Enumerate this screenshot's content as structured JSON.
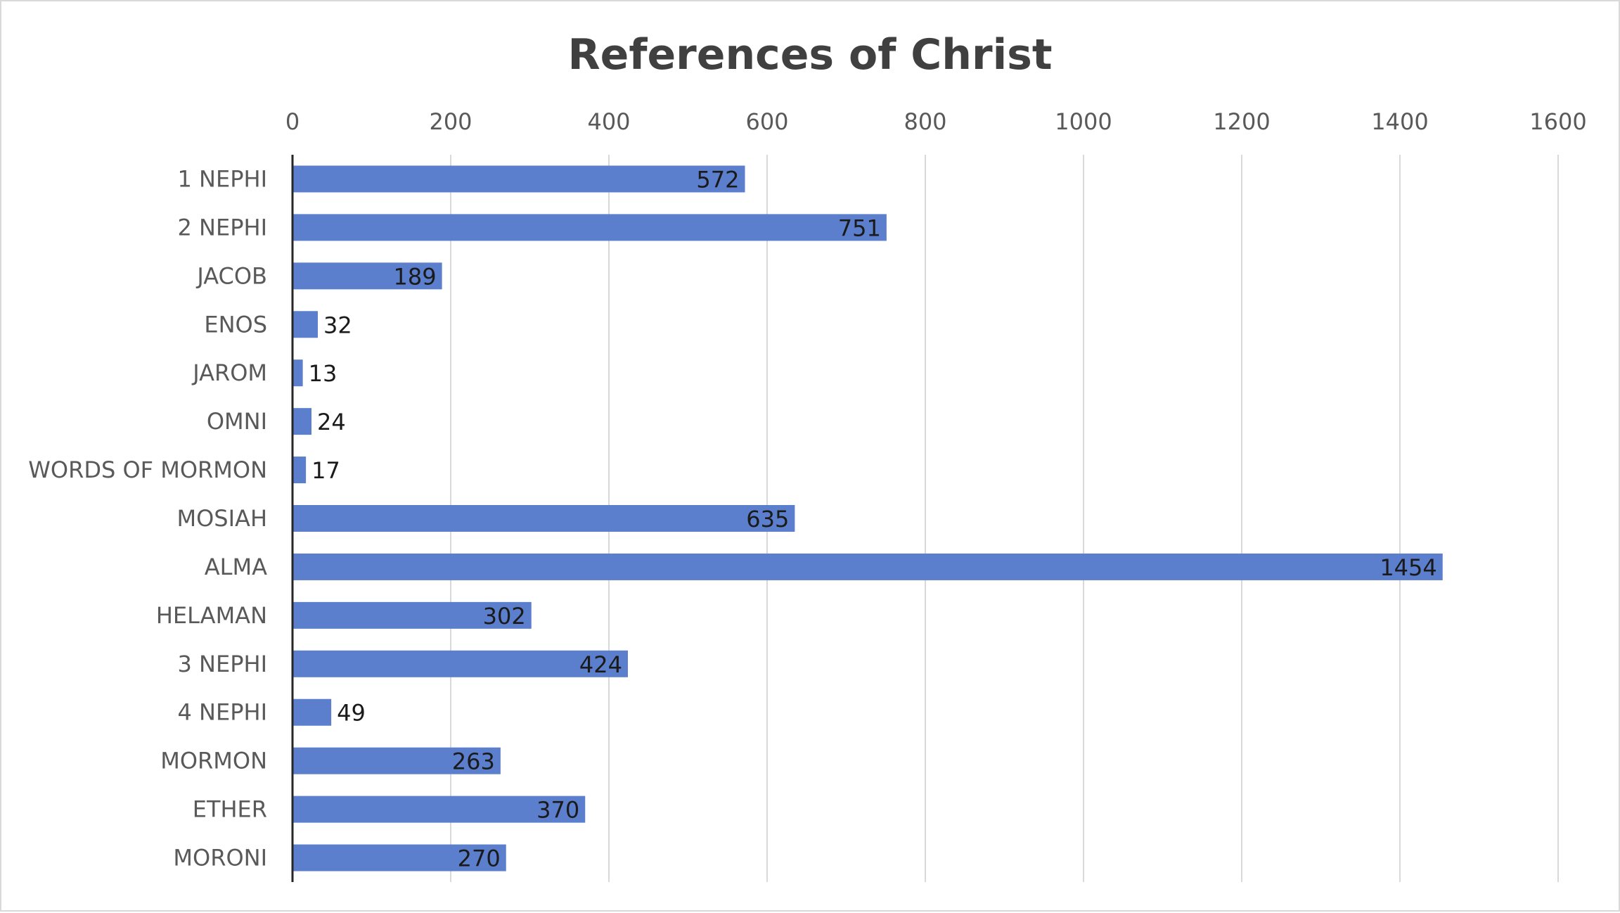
{
  "chart_data": {
    "type": "bar",
    "orientation": "horizontal",
    "title": "References of Christ",
    "xlabel": "",
    "ylabel": "",
    "xlim": [
      0,
      1600
    ],
    "x_ticks": [
      "0",
      "200",
      "400",
      "600",
      "800",
      "1000",
      "1200",
      "1400",
      "1600"
    ],
    "x_tick_values": [
      0,
      200,
      400,
      600,
      800,
      1000,
      1200,
      1400,
      1600
    ],
    "x_axis_position": "top",
    "grid": true,
    "legend": "none",
    "bar_color": "#5b7fcc",
    "categories": [
      "1 NEPHI",
      "2 NEPHI",
      "JACOB",
      "ENOS",
      "JAROM",
      "OMNI",
      "WORDS OF MORMON",
      "MOSIAH",
      "ALMA",
      "HELAMAN",
      "3 NEPHI",
      "4 NEPHI",
      "MORMON",
      "ETHER",
      "MORONI"
    ],
    "values": [
      572,
      751,
      189,
      32,
      13,
      24,
      17,
      635,
      1454,
      302,
      424,
      49,
      263,
      370,
      270
    ],
    "data_labels": [
      "572",
      "751",
      "189",
      "32",
      "13",
      "24",
      "17",
      "635",
      "1454",
      "302",
      "424",
      "49",
      "263",
      "370",
      "270"
    ]
  }
}
